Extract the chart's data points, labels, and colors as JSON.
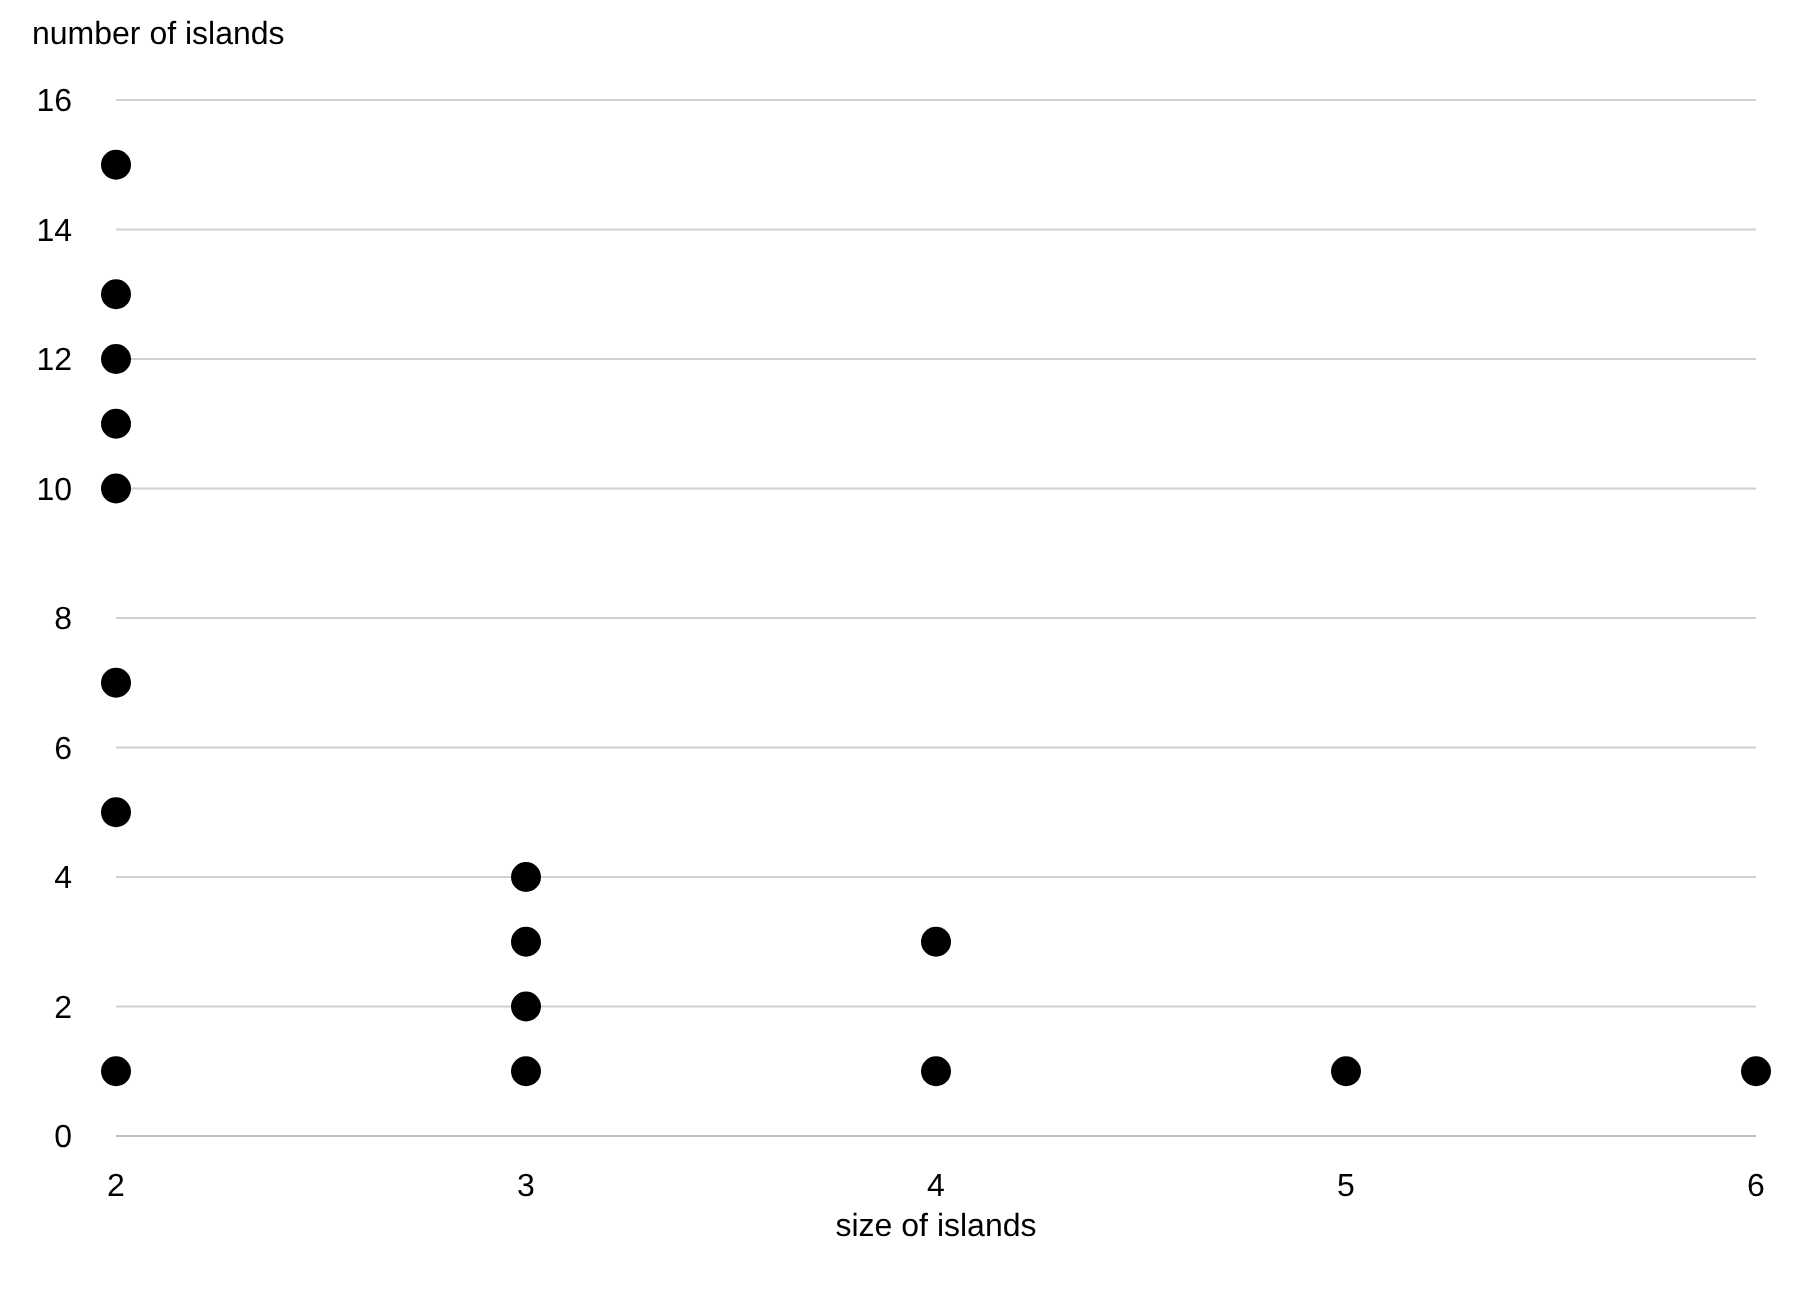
{
  "chart_data": {
    "type": "scatter",
    "xlabel": "size of islands",
    "ylabel": "number of islands",
    "x": [
      2,
      2,
      2,
      2,
      2,
      2,
      2,
      2,
      3,
      3,
      3,
      3,
      4,
      4,
      5,
      6
    ],
    "values": [
      15,
      13,
      12,
      11,
      10,
      7,
      5,
      1,
      4,
      3,
      2,
      1,
      3,
      1,
      1,
      1
    ],
    "color": "#000000",
    "marker": "circle",
    "grid": "y",
    "xlim": [
      2,
      6
    ],
    "xticks": [
      2,
      3,
      4,
      5,
      6
    ],
    "ylim": [
      0,
      16
    ],
    "yticks": [
      0,
      2,
      4,
      6,
      8,
      10,
      12,
      14,
      16
    ]
  }
}
